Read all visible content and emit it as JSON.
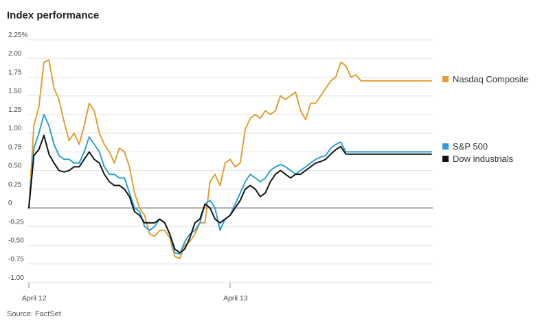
{
  "header": {
    "title": "Index performance"
  },
  "footer": {
    "source": "Source: FactSet"
  },
  "colors": {
    "nasdaq": "#e0a030",
    "sp500": "#2a9fd6",
    "dow": "#111111"
  },
  "chart_data": {
    "type": "line",
    "title": "Index performance",
    "xlabel": "",
    "ylabel": "",
    "ylim": [
      -1.0,
      2.25
    ],
    "y_ticks": [
      {
        "value": 2.25,
        "label": "2.25%"
      },
      {
        "value": 2.0,
        "label": "2.00"
      },
      {
        "value": 1.75,
        "label": "1.75"
      },
      {
        "value": 1.5,
        "label": "1.50"
      },
      {
        "value": 1.25,
        "label": "1.25"
      },
      {
        "value": 1.0,
        "label": "1.00"
      },
      {
        "value": 0.75,
        "label": "0.75"
      },
      {
        "value": 0.5,
        "label": "0.50"
      },
      {
        "value": 0.25,
        "label": "0.25"
      },
      {
        "value": 0,
        "label": "0"
      },
      {
        "value": -0.25,
        "label": "-0.25"
      },
      {
        "value": -0.5,
        "label": "-0.50"
      },
      {
        "value": -0.75,
        "label": "-0.75"
      },
      {
        "value": -1.0,
        "label": "-1.00"
      }
    ],
    "x_ticks": [
      "April 12",
      "April 13"
    ],
    "x": [
      0,
      1,
      2,
      3,
      4,
      5,
      6,
      7,
      8,
      9,
      10,
      11,
      12,
      13,
      14,
      15,
      16,
      17,
      18,
      19,
      20,
      21,
      22,
      23,
      24,
      25,
      26,
      27,
      28,
      29,
      30,
      31,
      32,
      33,
      34,
      35,
      36,
      37,
      38,
      39,
      40,
      41,
      42,
      43,
      44,
      45,
      46,
      47,
      48,
      49,
      50,
      51,
      52,
      53,
      54,
      55,
      56,
      57,
      58,
      59,
      60,
      61,
      62,
      63,
      64,
      65,
      66,
      67,
      68,
      69,
      70,
      71,
      72,
      73,
      74,
      75,
      76,
      77,
      78,
      79,
      80
    ],
    "x_tick_index": [
      0,
      40
    ],
    "legend_position": "right",
    "grid": true,
    "series": [
      {
        "name": "Nasdaq Composite",
        "color_key": "nasdaq",
        "values": [
          0,
          1.1,
          1.35,
          1.95,
          1.98,
          1.6,
          1.45,
          1.15,
          0.9,
          1.0,
          0.85,
          1.1,
          1.4,
          1.3,
          1.0,
          0.85,
          0.75,
          0.6,
          0.8,
          0.75,
          0.55,
          0.2,
          0.0,
          -0.1,
          -0.35,
          -0.38,
          -0.3,
          -0.3,
          -0.4,
          -0.65,
          -0.68,
          -0.5,
          -0.45,
          -0.35,
          -0.2,
          -0.2,
          0.35,
          0.45,
          0.3,
          0.6,
          0.65,
          0.55,
          0.6,
          1.05,
          1.2,
          1.25,
          1.2,
          1.3,
          1.25,
          1.3,
          1.5,
          1.45,
          1.5,
          1.55,
          1.3,
          1.18,
          1.4,
          1.4,
          1.5,
          1.6,
          1.7,
          1.75,
          1.95,
          1.9,
          1.75,
          1.78,
          1.7,
          1.7,
          1.7,
          1.7,
          1.7,
          1.7,
          1.7,
          1.7,
          1.7,
          1.7,
          1.7,
          1.7,
          1.7,
          1.7,
          1.7
        ]
      },
      {
        "name": "S&P 500",
        "color_key": "sp500",
        "values": [
          0,
          0.8,
          1.0,
          1.25,
          1.1,
          0.85,
          0.7,
          0.65,
          0.65,
          0.6,
          0.6,
          0.75,
          0.95,
          0.85,
          0.75,
          0.55,
          0.45,
          0.45,
          0.4,
          0.4,
          0.2,
          0.0,
          -0.05,
          -0.25,
          -0.3,
          -0.25,
          -0.15,
          -0.2,
          -0.35,
          -0.6,
          -0.62,
          -0.45,
          -0.35,
          -0.3,
          -0.2,
          0.05,
          0.1,
          0.0,
          -0.3,
          -0.15,
          -0.1,
          0.05,
          0.2,
          0.35,
          0.45,
          0.4,
          0.35,
          0.4,
          0.5,
          0.55,
          0.58,
          0.55,
          0.5,
          0.45,
          0.5,
          0.55,
          0.6,
          0.65,
          0.68,
          0.7,
          0.8,
          0.85,
          0.88,
          0.75,
          0.75,
          0.75,
          0.75,
          0.75,
          0.75,
          0.75,
          0.75,
          0.75,
          0.75,
          0.75,
          0.75,
          0.75,
          0.75,
          0.75,
          0.75,
          0.75,
          0.75
        ]
      },
      {
        "name": "Dow industrials",
        "color_key": "dow",
        "values": [
          0,
          0.7,
          0.78,
          0.97,
          0.72,
          0.6,
          0.5,
          0.48,
          0.5,
          0.55,
          0.55,
          0.65,
          0.75,
          0.65,
          0.6,
          0.45,
          0.35,
          0.3,
          0.3,
          0.25,
          0.15,
          -0.05,
          -0.1,
          -0.2,
          -0.2,
          -0.2,
          -0.15,
          -0.2,
          -0.35,
          -0.55,
          -0.6,
          -0.55,
          -0.4,
          -0.2,
          -0.15,
          0.05,
          0.0,
          -0.15,
          -0.2,
          -0.15,
          -0.1,
          0.0,
          0.1,
          0.25,
          0.3,
          0.25,
          0.15,
          0.2,
          0.35,
          0.45,
          0.5,
          0.45,
          0.4,
          0.45,
          0.45,
          0.5,
          0.55,
          0.6,
          0.62,
          0.65,
          0.72,
          0.78,
          0.82,
          0.72,
          0.72,
          0.72,
          0.72,
          0.72,
          0.72,
          0.72,
          0.72,
          0.72,
          0.72,
          0.72,
          0.72,
          0.72,
          0.72,
          0.72,
          0.72,
          0.72,
          0.72
        ]
      }
    ]
  }
}
